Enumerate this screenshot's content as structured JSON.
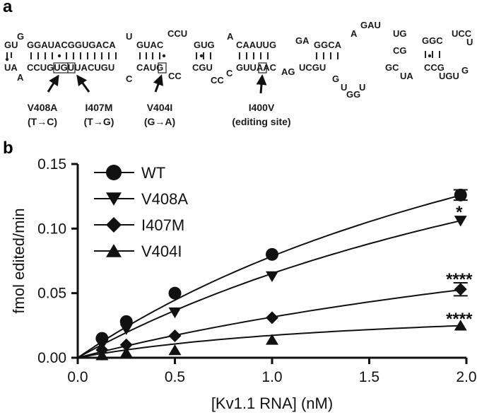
{
  "panel_a": {
    "label": "a",
    "top_strand": [
      "GU",
      "G",
      "GGAUACGGUGACA",
      "U",
      "GUAC",
      "CCU",
      "GUG",
      "A",
      "CAAUUG",
      "GA",
      "GGCA",
      "A",
      "GAU",
      "UG",
      "CG",
      "GGC",
      "UCC",
      "U"
    ],
    "bottom_strand": [
      "UA",
      "A",
      "CCUGUGUUACUGU",
      "C",
      "CAUG",
      "CC",
      "CGU",
      "CC",
      "C",
      "GUUAAC",
      "AG",
      "UCGU",
      "G",
      "GC",
      "UA",
      "CCG",
      "UGU",
      "G",
      "U",
      "GG",
      "U"
    ],
    "boxed_bases": [
      "UG",
      "U",
      "G",
      "A"
    ],
    "mutations": [
      {
        "name": "V408A",
        "change": "(T→C)"
      },
      {
        "name": "I407M",
        "change": "(T→G)"
      },
      {
        "name": "V404I",
        "change": "(G→A)"
      },
      {
        "name": "I400V",
        "change": "(editing site)"
      }
    ]
  },
  "panel_b": {
    "label": "b",
    "significance": [
      "*",
      "****",
      "****"
    ]
  },
  "chart_data": {
    "type": "scatter",
    "xlabel": "[Kv1.1 RNA] (nM)",
    "ylabel": "fmol edited/min",
    "xlim": [
      0.0,
      2.0
    ],
    "ylim": [
      0.0,
      0.15
    ],
    "xticks": [
      "0.0",
      "0.5",
      "1.0",
      "1.5",
      "2.0"
    ],
    "yticks": [
      "0.00",
      "0.05",
      "0.10",
      "0.15"
    ],
    "legend_position": "top-left",
    "grid": false,
    "x": [
      0.125,
      0.25,
      0.5,
      1.0,
      1.97
    ],
    "series": [
      {
        "name": "WT",
        "marker": "circle",
        "values": [
          0.015,
          0.028,
          0.05,
          0.08,
          0.126
        ],
        "error_last": 0.004,
        "significance": ""
      },
      {
        "name": "V408A",
        "marker": "triangle-down",
        "values": [
          0.01,
          0.022,
          0.035,
          0.063,
          0.106
        ],
        "error_last": 0.0,
        "significance": "*"
      },
      {
        "name": "I407M",
        "marker": "diamond",
        "values": [
          0.006,
          0.01,
          0.017,
          0.031,
          0.053
        ],
        "error_last": 0.005,
        "significance": "****"
      },
      {
        "name": "V404I",
        "marker": "triangle-up",
        "values": [
          0.002,
          0.004,
          0.006,
          0.014,
          0.025
        ],
        "error_last": 0.0,
        "significance": "****"
      }
    ],
    "fits": [
      {
        "vmax": 0.33,
        "km": 3.2
      },
      {
        "vmax": 0.3,
        "km": 3.6
      },
      {
        "vmax": 0.17,
        "km": 4.4
      },
      {
        "vmax": 0.045,
        "km": 1.6
      }
    ]
  }
}
